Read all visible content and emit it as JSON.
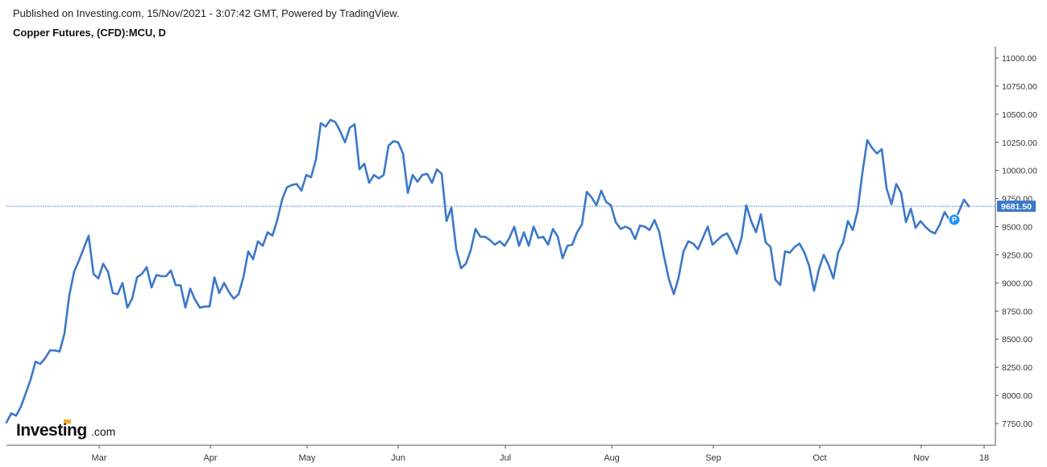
{
  "header": {
    "published": "Published on Investing.com, 15/Nov/2021 - 3:07:42 GMT, Powered by TradingView.",
    "symbol": "Copper Futures, (CFD):MCU, D"
  },
  "logo": {
    "main": "Investing",
    "suffix": ".com"
  },
  "colors": {
    "line": "#3b78c9",
    "price_tag": "#3b78c9",
    "marker": "#2196f3",
    "axis": "#333333"
  },
  "chart_data": {
    "type": "line",
    "title": "Copper Futures, (CFD):MCU, D",
    "ylim": [
      7650,
      11100
    ],
    "y_ticks": [
      "7750.00",
      "8000.00",
      "8250.00",
      "8500.00",
      "8750.00",
      "9000.00",
      "9250.00",
      "9500.00",
      "9750.00",
      "10000.00",
      "10250.00",
      "10500.00",
      "10750.00",
      "11000.00"
    ],
    "x_ticks": [
      "Mar",
      "Apr",
      "May",
      "Jun",
      "Jul",
      "Aug",
      "Sep",
      "Oct",
      "Nov",
      "18"
    ],
    "last_price": "9681.50",
    "last_price_value": 9681.5,
    "marker_label": "P",
    "series": [
      {
        "values": [
          7760,
          7840,
          7820,
          7900,
          8020,
          8140,
          8300,
          8280,
          8330,
          8400,
          8400,
          8390,
          8550,
          8890,
          9100,
          9200,
          9310,
          9420,
          9080,
          9040,
          9170,
          9100,
          8910,
          8900,
          9000,
          8780,
          8860,
          9050,
          9080,
          9140,
          8960,
          9070,
          9060,
          9060,
          9110,
          8980,
          8980,
          8780,
          8950,
          8850,
          8780,
          8790,
          8790,
          9050,
          8910,
          9000,
          8920,
          8860,
          8900,
          9050,
          9280,
          9210,
          9370,
          9330,
          9450,
          9420,
          9560,
          9740,
          9850,
          9870,
          9880,
          9820,
          9960,
          9940,
          10100,
          10420,
          10390,
          10450,
          10430,
          10350,
          10250,
          10380,
          10410,
          10010,
          10060,
          9890,
          9960,
          9930,
          9960,
          10220,
          10260,
          10250,
          10150,
          9800,
          9960,
          9900,
          9960,
          9970,
          9890,
          10010,
          9970,
          9550,
          9670,
          9300,
          9130,
          9170,
          9290,
          9480,
          9410,
          9410,
          9380,
          9340,
          9370,
          9330,
          9400,
          9500,
          9330,
          9450,
          9330,
          9500,
          9400,
          9410,
          9340,
          9480,
          9410,
          9220,
          9330,
          9340,
          9450,
          9520,
          9810,
          9760,
          9690,
          9820,
          9720,
          9690,
          9540,
          9480,
          9500,
          9480,
          9390,
          9510,
          9500,
          9470,
          9560,
          9450,
          9230,
          9030,
          8900,
          9050,
          9280,
          9370,
          9350,
          9300,
          9400,
          9500,
          9340,
          9380,
          9420,
          9440,
          9360,
          9260,
          9400,
          9690,
          9550,
          9450,
          9610,
          9360,
          9320,
          9030,
          8980,
          9280,
          9270,
          9320,
          9350,
          9270,
          9150,
          8930,
          9120,
          9250,
          9160,
          9040,
          9270,
          9360,
          9550,
          9470,
          9640,
          9980,
          10270,
          10200,
          10150,
          10190,
          9840,
          9700,
          9880,
          9800,
          9540,
          9660,
          9490,
          9550,
          9500,
          9460,
          9440,
          9520,
          9630,
          9560,
          9540,
          9640,
          9740,
          9681.5
        ]
      }
    ]
  }
}
